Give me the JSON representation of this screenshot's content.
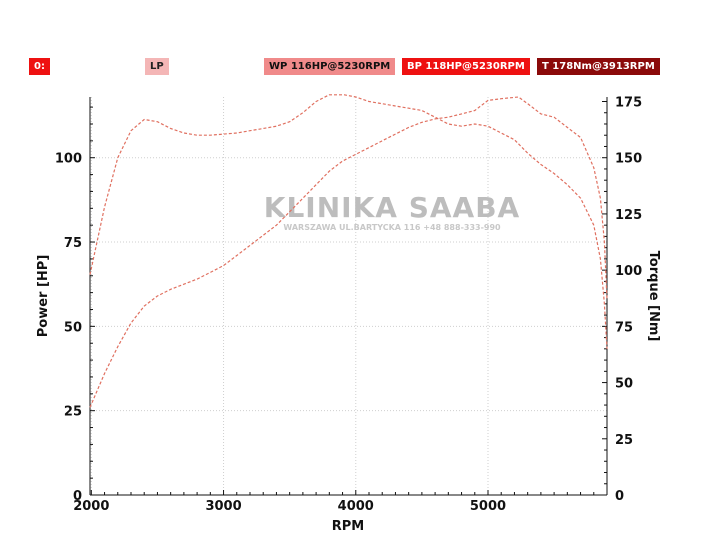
{
  "legend": {
    "zero_label": "0:",
    "lp_label": "LP",
    "wp_label": "WP 116HP@5230RPM",
    "bp_label": "BP 118HP@5230RPM",
    "t_label": "T 178Nm@3913RPM"
  },
  "watermark": {
    "title": "KLINIKA SAABA",
    "subtitle": "WARSZAWA UL.BARTYCKA 116 +48 888-333-990"
  },
  "colors": {
    "zero_badge_bg": "#ee1111",
    "lp_badge_bg": "#f4b6b6",
    "wp_badge_bg": "#f08a8a",
    "bp_badge_bg": "#ee1111",
    "t_badge_bg": "#8b0a0a",
    "curve": "#e07060"
  },
  "chart_data": {
    "type": "line",
    "xlabel": "RPM",
    "ylabel": "Power [HP]",
    "y2label": "Torque [Nm]",
    "xlim": [
      1990,
      5900
    ],
    "ylim": [
      0,
      118
    ],
    "y2lim": [
      0,
      177
    ],
    "xticks": [
      2000,
      3000,
      4000,
      5000
    ],
    "yticks": [
      0,
      25,
      50,
      75,
      100
    ],
    "y2ticks": [
      0,
      25,
      50,
      75,
      100,
      125,
      150,
      175
    ],
    "grid": true,
    "series": [
      {
        "name": "BP 118HP@5230RPM",
        "axis": "left",
        "x": [
          1990,
          2100,
          2200,
          2300,
          2400,
          2500,
          2600,
          2700,
          2800,
          2900,
          3000,
          3100,
          3200,
          3300,
          3400,
          3500,
          3600,
          3700,
          3800,
          3900,
          4000,
          4100,
          4200,
          4300,
          4400,
          4500,
          4600,
          4700,
          4800,
          4900,
          5000,
          5100,
          5230,
          5300,
          5400,
          5500,
          5600,
          5700,
          5800,
          5850,
          5880,
          5900
        ],
        "values": [
          26,
          36,
          44,
          51,
          56,
          59,
          61,
          62.5,
          64,
          66,
          68,
          71,
          74,
          77,
          80,
          84,
          88,
          92,
          96,
          99,
          101,
          103,
          105,
          107,
          109,
          110.5,
          111.5,
          112,
          113,
          114,
          117,
          117.5,
          118,
          116,
          113,
          112,
          109,
          106,
          97,
          88,
          75,
          58
        ]
      },
      {
        "name": "T 178Nm@3913RPM",
        "axis": "right",
        "x": [
          1990,
          2100,
          2200,
          2300,
          2400,
          2500,
          2600,
          2700,
          2800,
          2900,
          3000,
          3100,
          3200,
          3300,
          3400,
          3500,
          3600,
          3700,
          3800,
          3913,
          4000,
          4100,
          4200,
          4300,
          4400,
          4500,
          4600,
          4700,
          4800,
          4900,
          5000,
          5100,
          5200,
          5300,
          5400,
          5500,
          5600,
          5700,
          5800,
          5850,
          5880,
          5900
        ],
        "values": [
          98,
          128,
          150,
          162,
          167,
          166,
          163,
          161,
          160,
          160,
          160.5,
          161,
          162,
          163,
          164,
          166,
          170,
          175,
          178,
          178,
          177,
          175,
          174,
          173,
          172,
          171,
          168,
          165,
          164,
          165,
          164,
          161,
          158,
          152,
          147,
          143,
          138,
          132,
          120,
          105,
          85,
          65
        ]
      }
    ]
  }
}
